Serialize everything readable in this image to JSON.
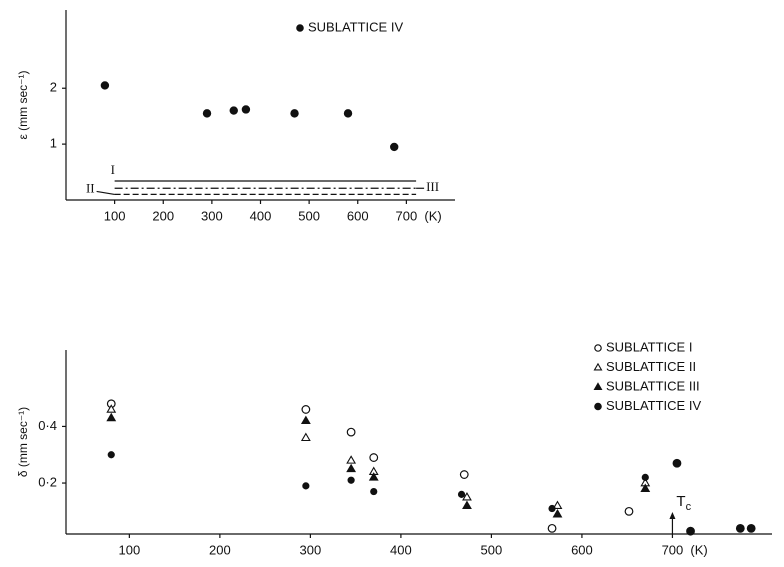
{
  "chart_data": [
    {
      "type": "scatter",
      "y_label": "ε (mm sec⁻¹)",
      "x_unit": "(K)",
      "xlim": [
        0,
        800
      ],
      "ylim": [
        0,
        3.4
      ],
      "xticks": [
        100,
        200,
        300,
        400,
        500,
        600,
        700
      ],
      "yticks": [
        1,
        2
      ],
      "legend": "top",
      "series": [
        {
          "name": "SUBLATTICE IV",
          "mode": "markers",
          "marker": "filled-circle",
          "color": "#111111",
          "x": [
            80,
            290,
            345,
            370,
            470,
            580,
            675
          ],
          "values": [
            2.05,
            1.55,
            1.6,
            1.62,
            1.55,
            1.55,
            0.95
          ]
        },
        {
          "name": "I",
          "mode": "line",
          "style": "solid",
          "color": "#111111",
          "x": [
            100,
            720
          ],
          "values": [
            0.34,
            0.34
          ]
        },
        {
          "name": "III",
          "mode": "line",
          "style": "dash-dot",
          "color": "#111111",
          "x": [
            100,
            720
          ],
          "values": [
            0.21,
            0.21
          ]
        },
        {
          "name": "II",
          "mode": "line",
          "style": "dashed",
          "color": "#111111",
          "x": [
            100,
            720
          ],
          "values": [
            0.1,
            0.1
          ]
        }
      ]
    },
    {
      "type": "scatter",
      "y_label": "δ (mm sec⁻¹)",
      "x_unit": "(K)",
      "xlim": [
        30,
        810
      ],
      "ylim": [
        0.02,
        0.67
      ],
      "xticks": [
        100,
        200,
        300,
        400,
        500,
        600,
        700
      ],
      "yticks": [
        {
          "value": 0.2,
          "label": "0·2"
        },
        {
          "value": 0.4,
          "label": "0·4"
        }
      ],
      "legend": "upper right",
      "tc": {
        "label": "T",
        "subscript": "c",
        "x": 700
      },
      "series": [
        {
          "name": "SUBLATTICE I",
          "mode": "markers",
          "marker": "open-circle",
          "color": "#111111",
          "x": [
            80,
            295,
            345,
            370,
            470,
            567,
            652,
            705,
            720,
            775,
            787
          ],
          "values": [
            0.48,
            0.46,
            0.38,
            0.29,
            0.23,
            0.04,
            0.1,
            0.27,
            0.03,
            0.04,
            0.04
          ]
        },
        {
          "name": "SUBLATTICE II",
          "mode": "markers",
          "marker": "open-triangle",
          "color": "#111111",
          "x": [
            80,
            295,
            345,
            370,
            473,
            573,
            670
          ],
          "values": [
            0.46,
            0.36,
            0.28,
            0.24,
            0.15,
            0.12,
            0.2
          ]
        },
        {
          "name": "SUBLATTICE III",
          "mode": "markers",
          "marker": "filled-triangle",
          "color": "#111111",
          "x": [
            80,
            295,
            345,
            370,
            473,
            573,
            670
          ],
          "values": [
            0.43,
            0.42,
            0.25,
            0.22,
            0.12,
            0.09,
            0.18
          ]
        },
        {
          "name": "SUBLATTICE IV",
          "mode": "markers",
          "marker": "filled-circle",
          "color": "#111111",
          "x": [
            80,
            295,
            345,
            370,
            467,
            567,
            670,
            705,
            720,
            775,
            787
          ],
          "values": [
            0.3,
            0.19,
            0.21,
            0.17,
            0.16,
            0.11,
            0.22,
            0.27,
            0.03,
            0.04,
            0.04
          ]
        }
      ]
    }
  ]
}
